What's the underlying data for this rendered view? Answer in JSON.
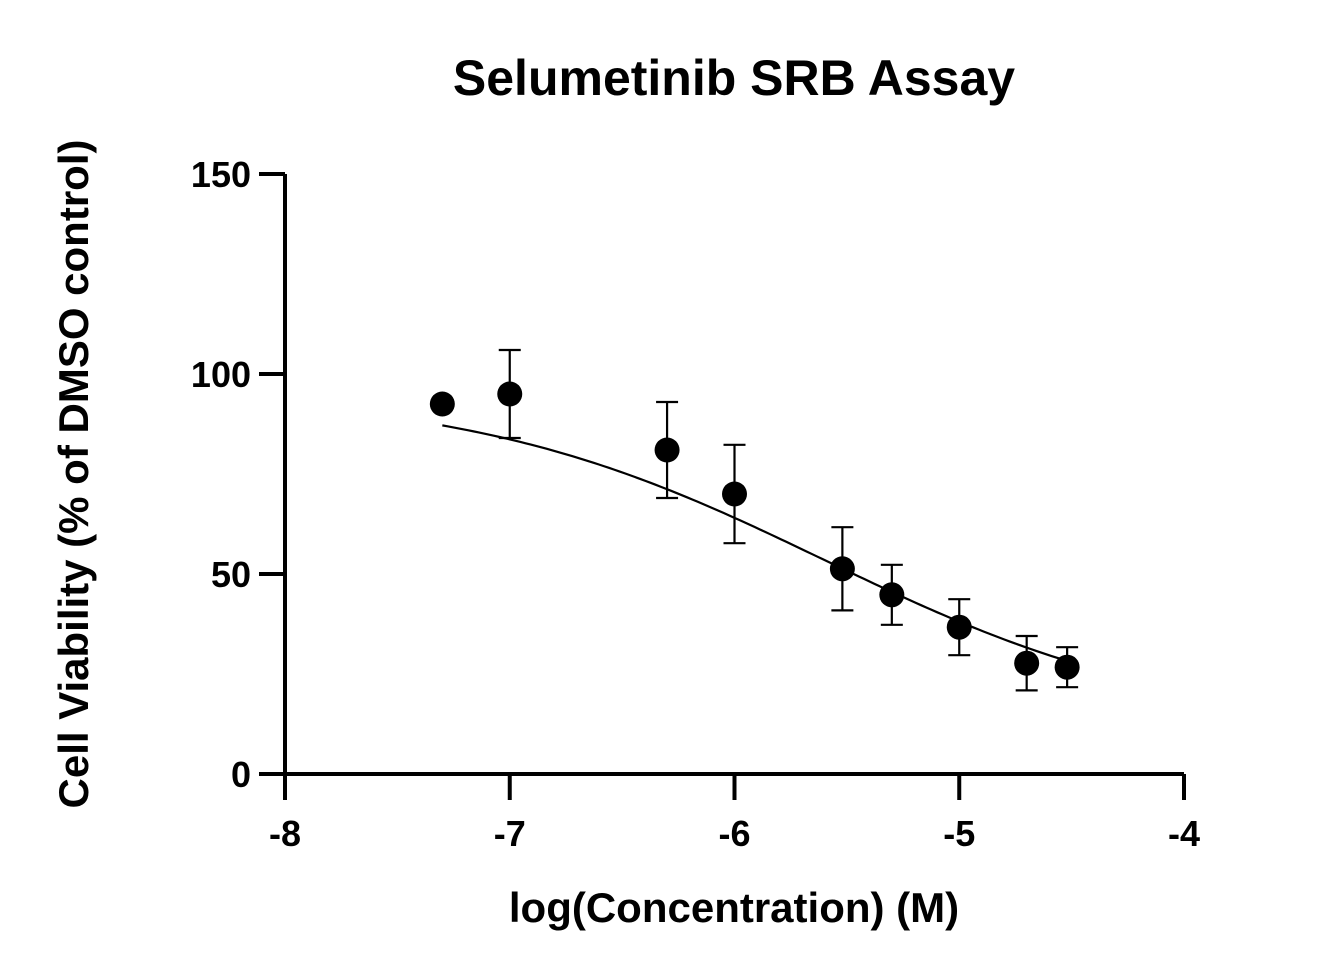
{
  "chart_data": {
    "type": "scatter",
    "title": "Selumetinib SRB Assay",
    "xlabel": "log(Concentration) (M)",
    "ylabel": "Cell Viability (% of DMSO control)",
    "xlim": [
      -8,
      -4
    ],
    "ylim": [
      0,
      150
    ],
    "x_ticks": [
      -8,
      -7,
      -6,
      -5,
      -4
    ],
    "y_ticks": [
      0,
      50,
      100,
      150
    ],
    "x_tick_labels": [
      "-8",
      "-7",
      "-6",
      "-5",
      "-4"
    ],
    "y_tick_labels": [
      "0",
      "50",
      "100",
      "150"
    ],
    "grid": false,
    "legend": "none",
    "point_color": "#000000",
    "series": [
      {
        "points": [
          {
            "x": -7.3,
            "y": 92.5,
            "err": null
          },
          {
            "x": -7.0,
            "y": 95.0,
            "err": 11.0
          },
          {
            "x": -6.3,
            "y": 81.0,
            "err": 12.0
          },
          {
            "x": -6.0,
            "y": 70.0,
            "err": 12.3
          },
          {
            "x": -5.52,
            "y": 51.3,
            "err": 10.4
          },
          {
            "x": -5.3,
            "y": 44.8,
            "err": 7.5
          },
          {
            "x": -5.0,
            "y": 36.7,
            "err": 7.0
          },
          {
            "x": -4.7,
            "y": 27.7,
            "err": 6.8
          },
          {
            "x": -4.52,
            "y": 26.7,
            "err": 5.0
          }
        ]
      }
    ],
    "fit": {
      "model": "four-parameter logistic",
      "top": 96,
      "bottom": 11,
      "logEC50": -5.6,
      "hill": -0.55,
      "x_range": [
        -7.3,
        -4.52
      ]
    }
  }
}
